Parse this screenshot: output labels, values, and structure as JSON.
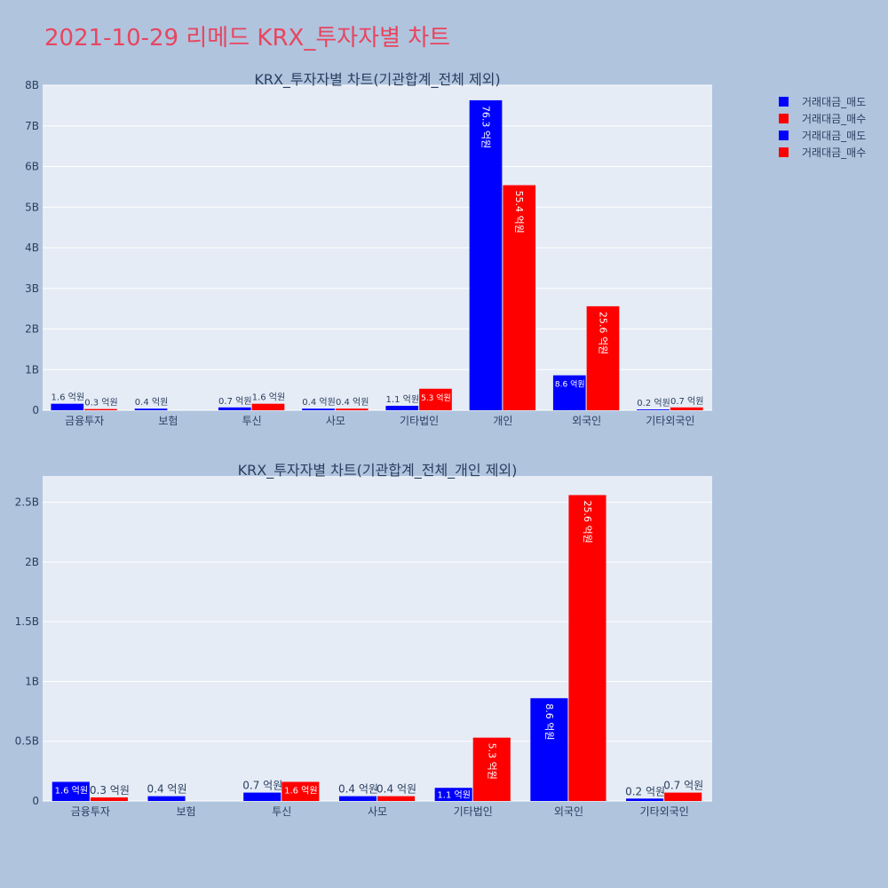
{
  "page": {
    "title": "2021-10-29 리메드 KRX_투자자별 차트"
  },
  "legend": {
    "items": [
      {
        "label": "거래대금_매도",
        "color": "#0000ff"
      },
      {
        "label": "거래대금_매수",
        "color": "#ff0000"
      },
      {
        "label": "거래대금_매도",
        "color": "#0000ff"
      },
      {
        "label": "거래대금_매수",
        "color": "#ff0000"
      }
    ]
  },
  "chart_data": [
    {
      "type": "bar",
      "title": "KRX_투자자별 차트(기관합계_전체 제외)",
      "categories": [
        "금융투자",
        "보험",
        "투신",
        "사모",
        "기타법인",
        "개인",
        "외국인",
        "기타외국인"
      ],
      "ylim": [
        0,
        8
      ],
      "yticks": [
        0,
        1,
        2,
        3,
        4,
        5,
        6,
        7,
        8
      ],
      "ytick_labels": [
        "0",
        "1B",
        "2B",
        "3B",
        "4B",
        "5B",
        "6B",
        "7B",
        "8B"
      ],
      "grid": true,
      "series": [
        {
          "name": "거래대금_매도",
          "color": "#0000ff",
          "values": [
            0.16,
            0.04,
            0.07,
            0.04,
            0.11,
            7.63,
            0.86,
            0.02
          ],
          "labels": [
            "1.6 억원",
            "0.4 억원",
            "0.7 억원",
            "0.4 억원",
            "1.1 억원",
            "76.3 억원",
            "8.6 억원",
            "0.2 억원"
          ]
        },
        {
          "name": "거래대금_매수",
          "color": "#ff0000",
          "values": [
            0.03,
            0,
            0.16,
            0.04,
            0.53,
            5.54,
            2.56,
            0.07
          ],
          "labels": [
            "0.3 억원",
            "",
            "1.6 억원",
            "0.4 억원",
            "5.3 억원",
            "55.4 억원",
            "25.6 억원",
            "0.7 억원"
          ]
        }
      ]
    },
    {
      "type": "bar",
      "title": "KRX_투자자별 차트(기관합계_전체_개인 제외)",
      "categories": [
        "금융투자",
        "보험",
        "투신",
        "사모",
        "기타법인",
        "외국인",
        "기타외국인"
      ],
      "ylim": [
        0,
        2.72
      ],
      "yticks": [
        0,
        0.5,
        1,
        1.5,
        2,
        2.5
      ],
      "ytick_labels": [
        "0",
        "0.5B",
        "1B",
        "1.5B",
        "2B",
        "2.5B"
      ],
      "grid": true,
      "series": [
        {
          "name": "거래대금_매도",
          "color": "#0000ff",
          "values": [
            0.16,
            0.04,
            0.07,
            0.04,
            0.11,
            0.86,
            0.02
          ],
          "labels": [
            "1.6 억원",
            "0.4 억원",
            "0.7 억원",
            "0.4 억원",
            "1.1 억원",
            "8.6 억원",
            "0.2 억원"
          ]
        },
        {
          "name": "거래대금_매수",
          "color": "#ff0000",
          "values": [
            0.03,
            0,
            0.16,
            0.04,
            0.53,
            2.56,
            0.07
          ],
          "labels": [
            "0.3 억원",
            "",
            "1.6 억원",
            "0.4 억원",
            "5.3 억원",
            "25.6 억원",
            "0.7 억원"
          ]
        }
      ]
    }
  ]
}
